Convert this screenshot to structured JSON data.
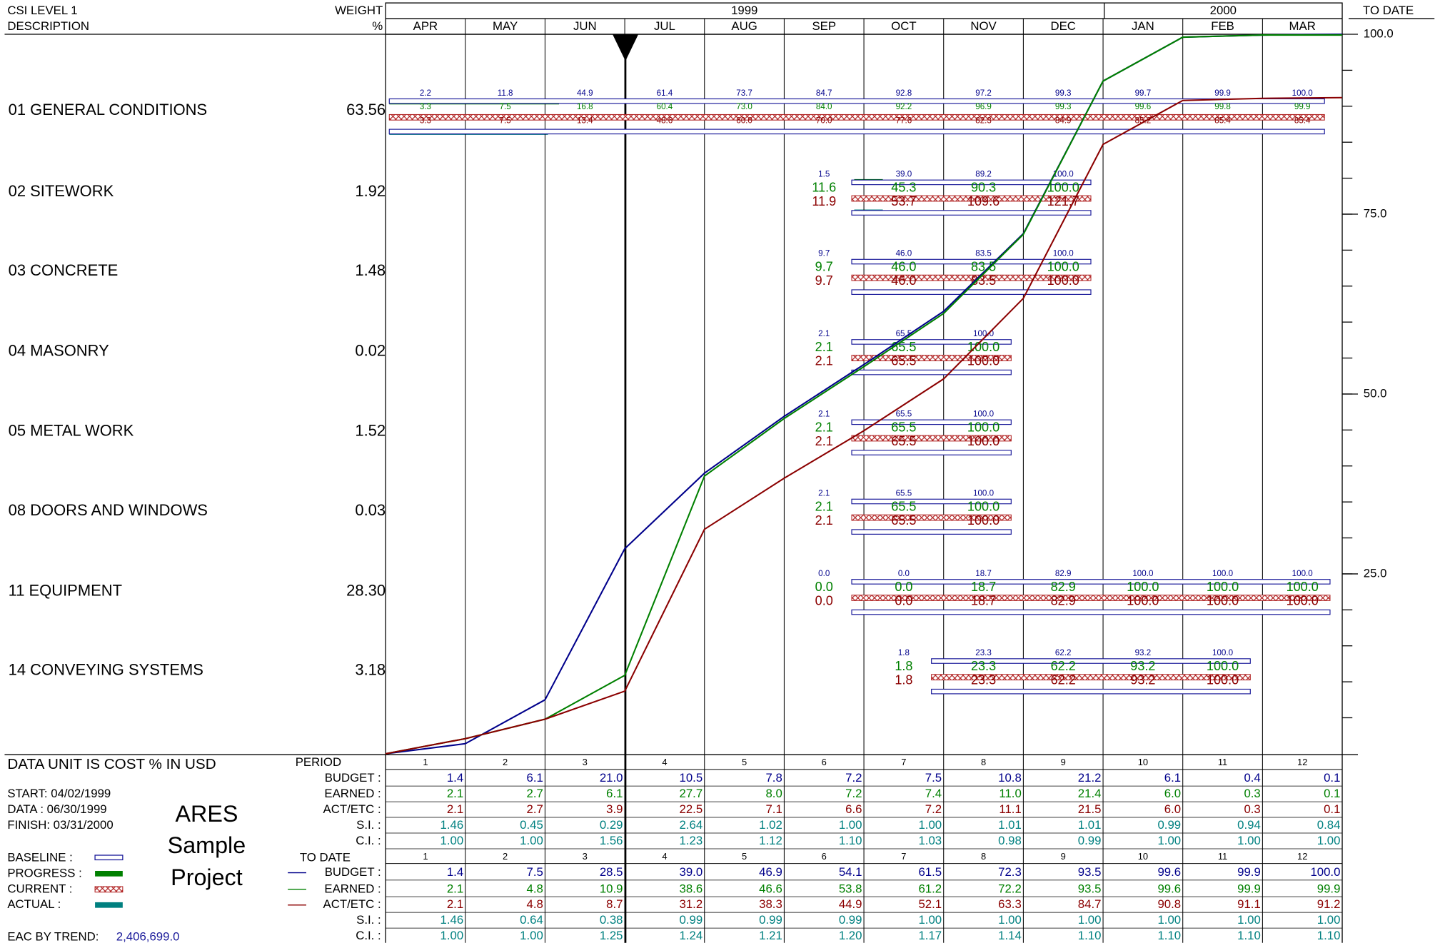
{
  "header": {
    "left_title": "CSI LEVEL 1",
    "left_sub": "DESCRIPTION",
    "weight_title": "WEIGHT",
    "weight_unit": "%",
    "years": [
      "1999",
      "2000"
    ],
    "months": [
      "APR",
      "MAY",
      "JUN",
      "JUL",
      "AUG",
      "SEP",
      "OCT",
      "NOV",
      "DEC",
      "JAN",
      "FEB",
      "MAR"
    ],
    "to_date": "TO DATE"
  },
  "axis": {
    "ticks": [
      "100.0",
      "75.0",
      "50.0",
      "25.0"
    ]
  },
  "activities": [
    {
      "name": "01 GENERAL CONDITIONS",
      "weight": "63.56",
      "budget": [
        "2.2",
        "11.8",
        "44.9",
        "61.4",
        "73.7",
        "84.7",
        "92.8",
        "97.2",
        "99.3",
        "99.7",
        "99.9",
        "100.0"
      ],
      "earned": [
        "3.3",
        "7.5",
        "16.8",
        "60.4",
        "73.0",
        "84.0",
        "92.2",
        "96.9",
        "99.3",
        "99.6",
        "99.8",
        "99.9"
      ],
      "current": [
        "3.3",
        "7.5",
        "13.4",
        "48.6",
        "60.0",
        "70.0",
        "77.6",
        "82.3",
        "84.9",
        "85.2",
        "85.4",
        "85.4"
      ]
    },
    {
      "name": "02 SITEWORK",
      "weight": "1.92",
      "budget": [
        null,
        null,
        null,
        null,
        null,
        "1.5",
        "39.0",
        "89.2",
        "100.0",
        null,
        null,
        null
      ],
      "earned": [
        null,
        null,
        null,
        null,
        null,
        "11.6",
        "45.3",
        "90.3",
        "100.0",
        null,
        null,
        null
      ],
      "current": [
        null,
        null,
        null,
        null,
        null,
        "11.9",
        "53.7",
        "109.6",
        "121.7",
        null,
        null,
        null
      ]
    },
    {
      "name": "03 CONCRETE",
      "weight": "1.48",
      "budget": [
        null,
        null,
        null,
        null,
        null,
        "9.7",
        "46.0",
        "83.5",
        "100.0",
        null,
        null,
        null
      ],
      "earned": [
        null,
        null,
        null,
        null,
        null,
        "9.7",
        "46.0",
        "83.5",
        "100.0",
        null,
        null,
        null
      ],
      "current": [
        null,
        null,
        null,
        null,
        null,
        "9.7",
        "46.0",
        "83.5",
        "100.0",
        null,
        null,
        null
      ]
    },
    {
      "name": "04 MASONRY",
      "weight": "0.02",
      "budget": [
        null,
        null,
        null,
        null,
        null,
        "2.1",
        "65.5",
        "100.0",
        null,
        null,
        null,
        null
      ],
      "earned": [
        null,
        null,
        null,
        null,
        null,
        "2.1",
        "65.5",
        "100.0",
        null,
        null,
        null,
        null
      ],
      "current": [
        null,
        null,
        null,
        null,
        null,
        "2.1",
        "65.5",
        "100.0",
        null,
        null,
        null,
        null
      ]
    },
    {
      "name": "05 METAL WORK",
      "weight": "1.52",
      "budget": [
        null,
        null,
        null,
        null,
        null,
        "2.1",
        "65.5",
        "100.0",
        null,
        null,
        null,
        null
      ],
      "earned": [
        null,
        null,
        null,
        null,
        null,
        "2.1",
        "65.5",
        "100.0",
        null,
        null,
        null,
        null
      ],
      "current": [
        null,
        null,
        null,
        null,
        null,
        "2.1",
        "65.5",
        "100.0",
        null,
        null,
        null,
        null
      ]
    },
    {
      "name": "08 DOORS AND WINDOWS",
      "weight": "0.03",
      "budget": [
        null,
        null,
        null,
        null,
        null,
        "2.1",
        "65.5",
        "100.0",
        null,
        null,
        null,
        null
      ],
      "earned": [
        null,
        null,
        null,
        null,
        null,
        "2.1",
        "65.5",
        "100.0",
        null,
        null,
        null,
        null
      ],
      "current": [
        null,
        null,
        null,
        null,
        null,
        "2.1",
        "65.5",
        "100.0",
        null,
        null,
        null,
        null
      ]
    },
    {
      "name": "11 EQUIPMENT",
      "weight": "28.30",
      "budget": [
        null,
        null,
        null,
        null,
        null,
        "0.0",
        "0.0",
        "18.7",
        "82.9",
        "100.0",
        "100.0",
        "100.0"
      ],
      "earned": [
        null,
        null,
        null,
        null,
        null,
        "0.0",
        "0.0",
        "18.7",
        "82.9",
        "100.0",
        "100.0",
        "100.0"
      ],
      "current": [
        null,
        null,
        null,
        null,
        null,
        "0.0",
        "0.0",
        "18.7",
        "82.9",
        "100.0",
        "100.0",
        "100.0"
      ]
    },
    {
      "name": "14 CONVEYING SYSTEMS",
      "weight": "3.18",
      "budget": [
        null,
        null,
        null,
        null,
        null,
        null,
        "1.8",
        "23.3",
        "62.2",
        "93.2",
        "100.0",
        null
      ],
      "earned": [
        null,
        null,
        null,
        null,
        null,
        null,
        "1.8",
        "23.3",
        "62.2",
        "93.2",
        "100.0",
        null
      ],
      "current": [
        null,
        null,
        null,
        null,
        null,
        null,
        "1.8",
        "23.3",
        "62.2",
        "93.2",
        "100.0",
        null
      ]
    }
  ],
  "summary": {
    "unit": "DATA UNIT IS COST % IN USD",
    "start": "START: 04/02/1999",
    "data": "DATA  : 06/30/1999",
    "finish": "FINISH: 03/31/2000",
    "project": [
      "ARES",
      "Sample",
      "Project"
    ],
    "legend": [
      "BASELINE  :",
      "PROGRESS :",
      "CURRENT   :",
      "ACTUAL      :"
    ],
    "eac_label": "EAC BY TREND:",
    "eac": "2,406,699.0"
  },
  "period": {
    "title": "PERIOD",
    "numbers": [
      "1",
      "2",
      "3",
      "4",
      "5",
      "6",
      "7",
      "8",
      "9",
      "10",
      "11",
      "12"
    ],
    "rows": [
      {
        "label": "BUDGET :",
        "values": [
          "1.4",
          "6.1",
          "21.0",
          "10.5",
          "7.8",
          "7.2",
          "7.5",
          "10.8",
          "21.2",
          "6.1",
          "0.4",
          "0.1"
        ]
      },
      {
        "label": "EARNED :",
        "values": [
          "2.1",
          "2.7",
          "6.1",
          "27.7",
          "8.0",
          "7.2",
          "7.4",
          "11.0",
          "21.4",
          "6.0",
          "0.3",
          "0.1"
        ]
      },
      {
        "label": "ACT/ETC :",
        "values": [
          "2.1",
          "2.7",
          "3.9",
          "22.5",
          "7.1",
          "6.6",
          "7.2",
          "11.1",
          "21.5",
          "6.0",
          "0.3",
          "0.1"
        ]
      },
      {
        "label": "S.I. :",
        "values": [
          "1.46",
          "0.45",
          "0.29",
          "2.64",
          "1.02",
          "1.00",
          "1.00",
          "1.01",
          "1.01",
          "0.99",
          "0.94",
          "0.84"
        ]
      },
      {
        "label": "C.I. :",
        "values": [
          "1.00",
          "1.00",
          "1.56",
          "1.23",
          "1.12",
          "1.10",
          "1.03",
          "0.98",
          "0.99",
          "1.00",
          "1.00",
          "1.00"
        ]
      }
    ]
  },
  "to_date": {
    "title": "TO DATE",
    "numbers": [
      "1",
      "2",
      "3",
      "4",
      "5",
      "6",
      "7",
      "8",
      "9",
      "10",
      "11",
      "12"
    ],
    "rows": [
      {
        "label": "BUDGET :",
        "values": [
          "1.4",
          "7.5",
          "28.5",
          "39.0",
          "46.9",
          "54.1",
          "61.5",
          "72.3",
          "93.5",
          "99.6",
          "99.9",
          "100.0"
        ]
      },
      {
        "label": "EARNED :",
        "values": [
          "2.1",
          "4.8",
          "10.9",
          "38.6",
          "46.6",
          "53.8",
          "61.2",
          "72.2",
          "93.5",
          "99.6",
          "99.9",
          "99.9"
        ]
      },
      {
        "label": "ACT/ETC :",
        "values": [
          "2.1",
          "4.8",
          "8.7",
          "31.2",
          "38.3",
          "44.9",
          "52.1",
          "63.3",
          "84.7",
          "90.8",
          "91.1",
          "91.2"
        ]
      },
      {
        "label": "S.I. :",
        "values": [
          "1.46",
          "0.64",
          "0.38",
          "0.99",
          "0.99",
          "0.99",
          "1.00",
          "1.00",
          "1.00",
          "1.00",
          "1.00",
          "1.00"
        ]
      },
      {
        "label": "C.I. :",
        "values": [
          "1.00",
          "1.00",
          "1.25",
          "1.24",
          "1.21",
          "1.20",
          "1.17",
          "1.14",
          "1.10",
          "1.10",
          "1.10",
          "1.10"
        ]
      }
    ]
  }
}
